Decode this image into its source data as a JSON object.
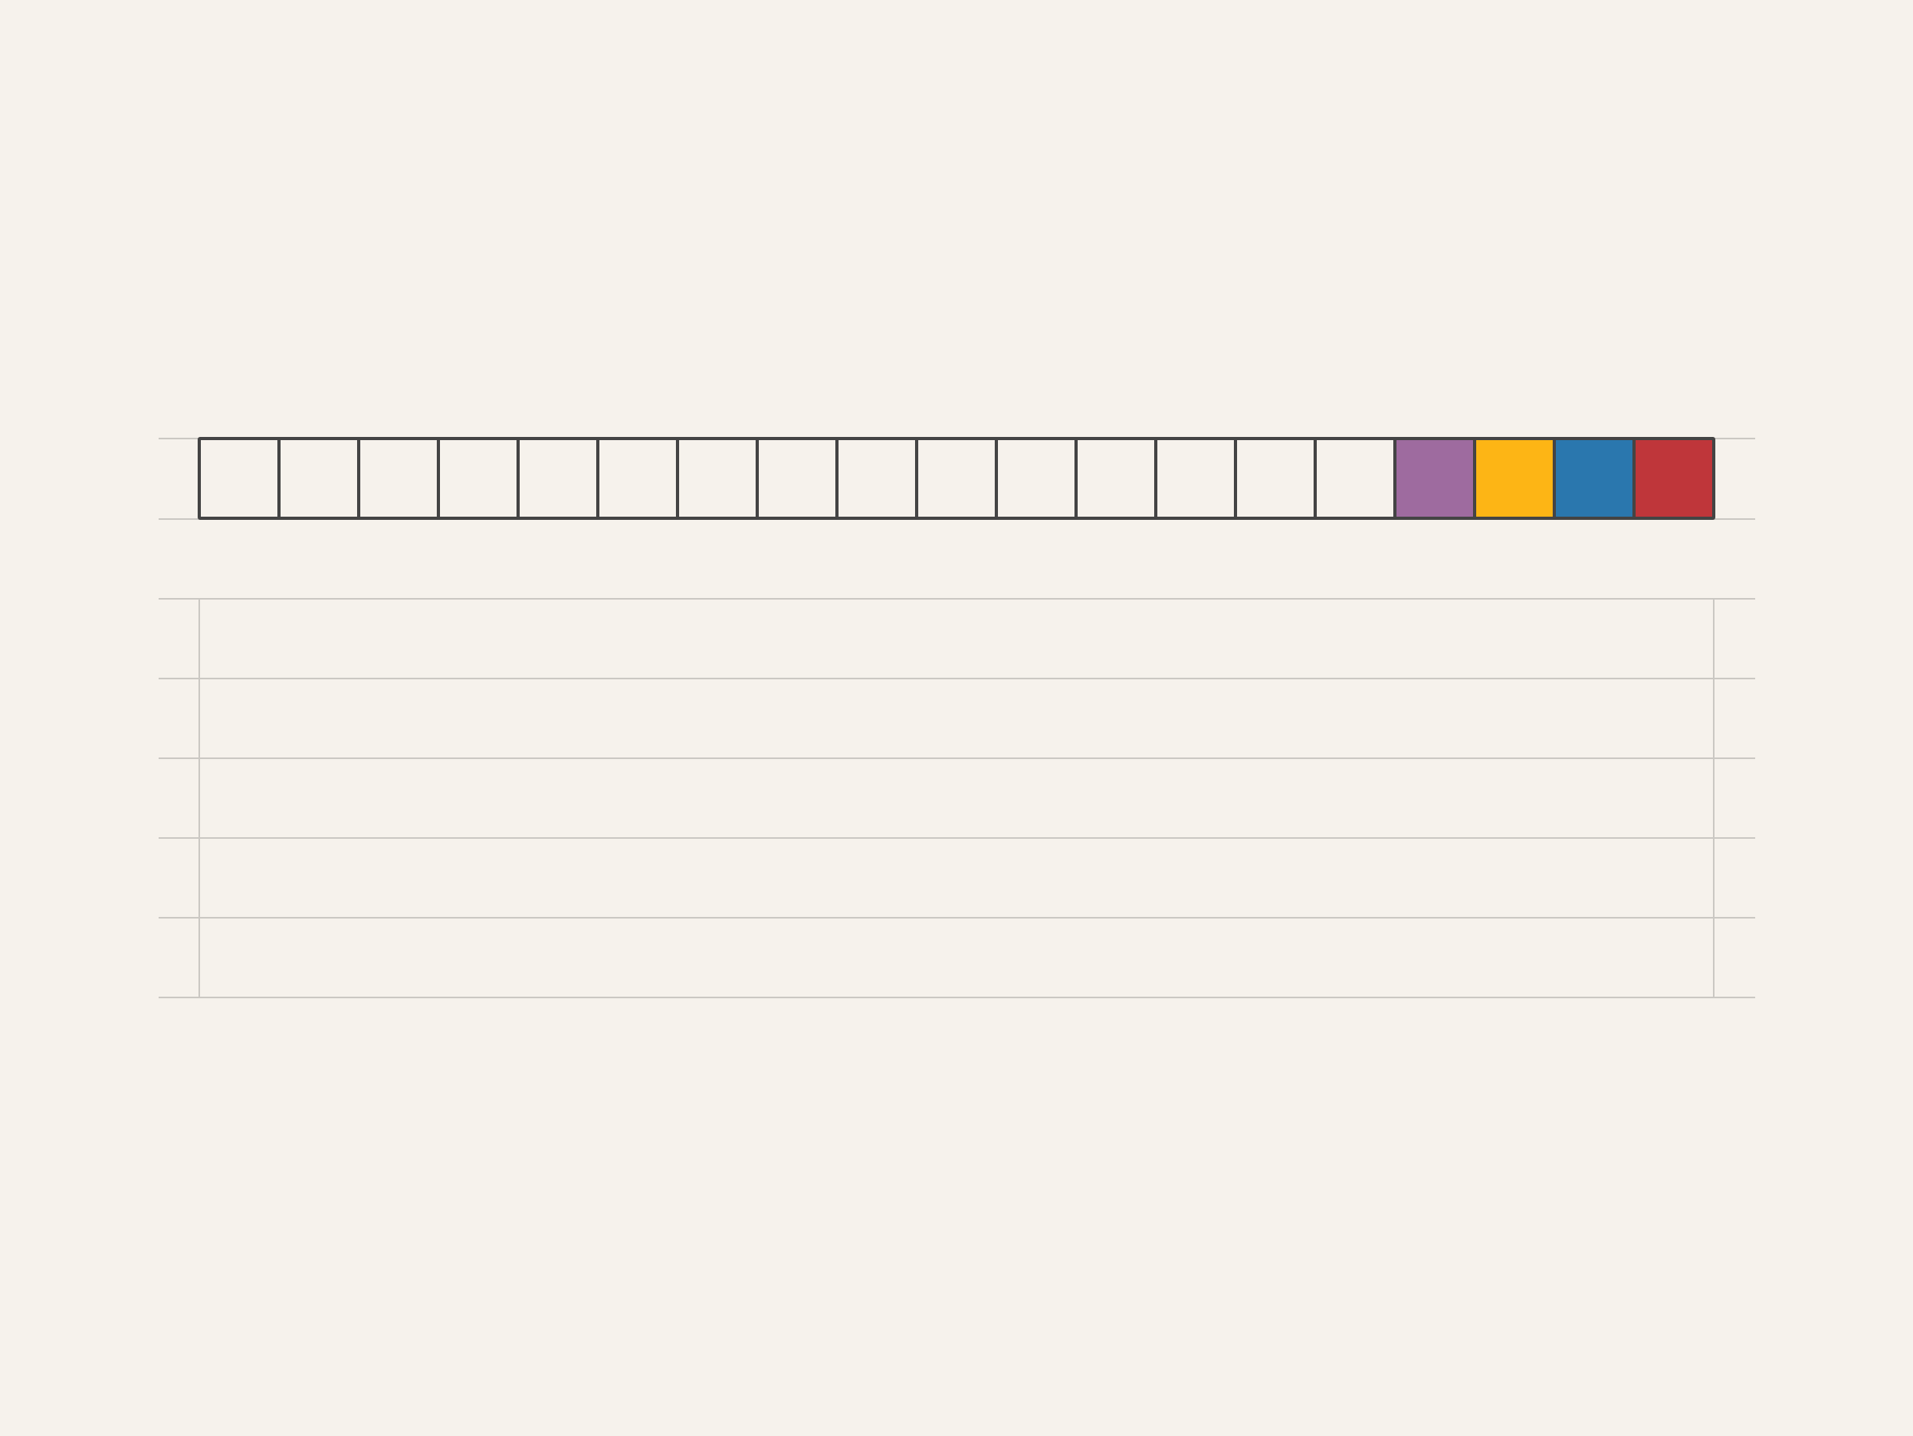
{
  "board": {
    "code_row": {
      "cells": [
        null,
        null,
        null,
        null,
        null,
        null,
        null,
        null,
        null,
        null,
        null,
        null,
        null,
        null,
        null,
        "#9E6B9F",
        "#FDB515",
        "#2A77AE",
        "#BF363A"
      ]
    },
    "empty_rows": 5,
    "colors": {
      "purple": "#9E6B9F",
      "yellow": "#FDB515",
      "blue": "#2A77AE",
      "red": "#BF363A",
      "outline": "#444444",
      "guide_line": "#CBC8C3",
      "background": "#F6F2EC"
    }
  }
}
